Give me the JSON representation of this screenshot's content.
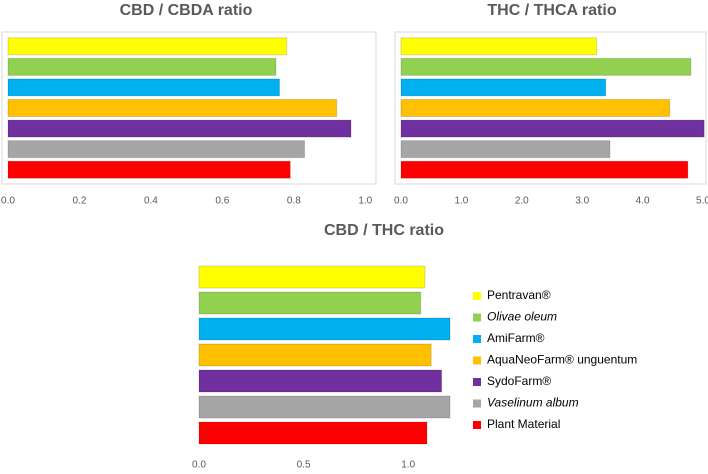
{
  "legend": {
    "names": [
      "Pentravan®",
      "Olivae oleum",
      "AmiFarm®",
      "AquaNeoFarm® unguentum",
      "SydoFarm®",
      "Vaselinum album",
      "Plant Material"
    ],
    "colors": [
      "#ffff00",
      "#92d050",
      "#00b0f0",
      "#ffc000",
      "#7030a0",
      "#a6a6a6",
      "#ff0000"
    ]
  },
  "chart_data": [
    {
      "type": "bar",
      "title": "CBD / CBDA ratio",
      "values": [
        0.78,
        0.75,
        0.76,
        0.92,
        0.96,
        0.83,
        0.79
      ],
      "xlim": [
        0,
        1.03
      ],
      "xticks": [
        {
          "value": 0,
          "label": "0.0"
        },
        0.2,
        0.4,
        0.6,
        0.8,
        {
          "value": 1,
          "label": "1.0"
        }
      ]
    },
    {
      "type": "bar",
      "title": "THC / THCA ratio",
      "values": [
        3.24,
        4.8,
        3.39,
        4.45,
        5.02,
        3.46,
        4.75
      ],
      "xlim": [
        0,
        5.05
      ],
      "xticks": [
        {
          "value": 0,
          "label": "0.0"
        },
        {
          "value": 1,
          "label": "1.0"
        },
        {
          "value": 2,
          "label": "2.0"
        },
        {
          "value": 3,
          "label": "3.0"
        },
        {
          "value": 4,
          "label": "4.0"
        },
        {
          "value": 5,
          "label": "5.0"
        }
      ]
    },
    {
      "type": "bar",
      "title": "CBD / THC ratio",
      "values": [
        1.08,
        1.06,
        1.2,
        1.11,
        1.16,
        1.2,
        1.09
      ],
      "xlim": [
        0,
        1.2
      ],
      "xticks": [
        {
          "value": 0,
          "label": "0.0"
        },
        0.5,
        {
          "value": 1,
          "label": "1.0"
        }
      ]
    }
  ]
}
